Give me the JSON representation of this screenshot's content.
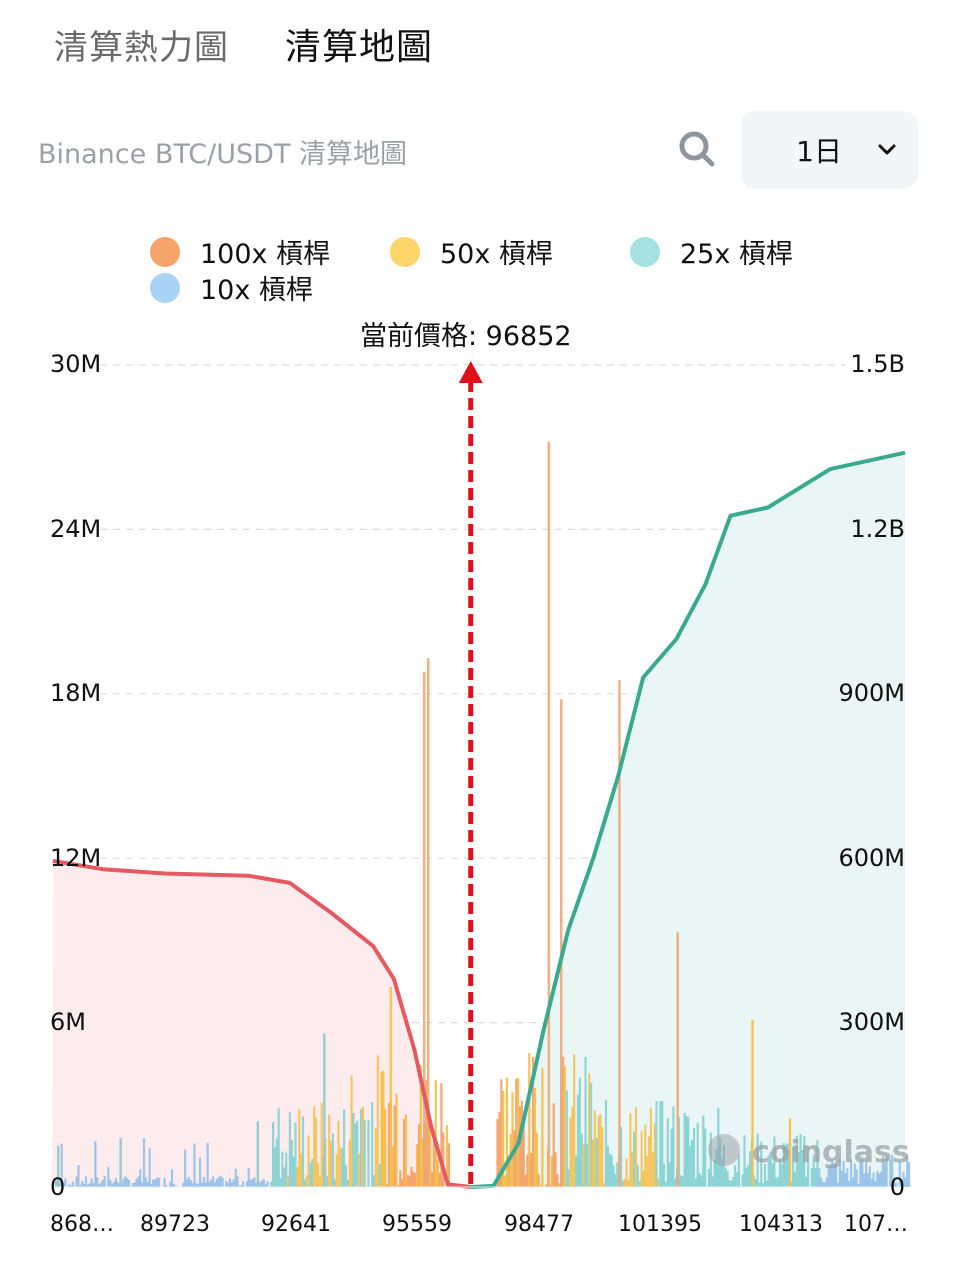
{
  "tabs": [
    {
      "label": "清算熱力圖",
      "active": false
    },
    {
      "label": "清算地圖",
      "active": true
    }
  ],
  "header": {
    "subtitle": "Binance BTC/USDT 清算地圖",
    "search_icon": "search-icon",
    "range": {
      "selected": "1日",
      "icon": "chevron-down-icon"
    }
  },
  "legend": [
    {
      "label": "100x 槓桿",
      "color": "#f7a46b"
    },
    {
      "label": "50x 槓桿",
      "color": "#fcd46a"
    },
    {
      "label": "25x 槓桿",
      "color": "#a6e1e2"
    },
    {
      "label": "10x 槓桿",
      "color": "#a9d3f5"
    }
  ],
  "current_price": {
    "label": "當前價格: 96852",
    "value": 96852,
    "color": "#e0101a"
  },
  "colors": {
    "short_cum_line": "#e45a62",
    "short_cum_fill": "#fdecee",
    "long_cum_line": "#3aa98e",
    "long_cum_fill": "#eaf6f5",
    "grid": "#dddddd"
  },
  "watermark": "coinglass",
  "chart_data": {
    "type": "bar",
    "title": "Binance BTC/USDT 清算地圖",
    "xlabel": "",
    "ylabel": "",
    "ylabel_right": "",
    "y_ticks_left": [
      "0",
      "6M",
      "12M",
      "18M",
      "24M",
      "30M"
    ],
    "y_ticks_right": [
      "0",
      "300M",
      "600M",
      "900M",
      "1.2B",
      "1.5B"
    ],
    "ylim_left": [
      0,
      30000000
    ],
    "ylim_right": [
      0,
      1500000000
    ],
    "x_tick_labels": [
      "868…",
      "89723",
      "92641",
      "95559",
      "98477",
      "101395",
      "104313",
      "107…"
    ],
    "x_ticks_values": [
      86805,
      89723,
      92641,
      95559,
      98477,
      101395,
      104313,
      107231
    ],
    "xlim": [
      86000,
      107500
    ],
    "current_price": 96852,
    "grid": true,
    "legend_position": "top",
    "series": [
      {
        "name": "100x 槓桿",
        "color": "#f7a46b",
        "description": "Concentrated near current price (95000-103000); peak ~27M near 99000"
      },
      {
        "name": "50x 槓桿",
        "color": "#fcd46a",
        "description": "Concentrated 94500-104500; peaks ~9M"
      },
      {
        "name": "25x 槓桿",
        "color": "#a6e1e2",
        "description": "Spread 91500-106000; mostly under 5M"
      },
      {
        "name": "10x 槓桿",
        "color": "#a9d3f5",
        "description": "Far from price (86800-92000, 105000-107500); mostly under 2M"
      }
    ],
    "bars_sample": [
      {
        "price": 86900,
        "value": 1500000
      },
      {
        "price": 88400,
        "value": 1800000
      },
      {
        "price": 91700,
        "value": 2400000
      },
      {
        "price": 93300,
        "value": 5600000
      },
      {
        "price": 94900,
        "value": 7300000
      },
      {
        "price": 95700,
        "value": 18800000
      },
      {
        "price": 95800,
        "value": 19300000
      },
      {
        "price": 98700,
        "value": 27200000
      },
      {
        "price": 99000,
        "value": 17800000
      },
      {
        "price": 100400,
        "value": 18500000
      },
      {
        "price": 101800,
        "value": 9300000
      },
      {
        "price": 103600,
        "value": 6100000
      },
      {
        "price": 104500,
        "value": 2500000
      }
    ],
    "cumulative_short": {
      "name": "cumulative short liquidations (left side)",
      "axis": "right",
      "points": [
        [
          86800,
          595000000
        ],
        [
          88000,
          580000000
        ],
        [
          89500,
          572000000
        ],
        [
          91500,
          568000000
        ],
        [
          92500,
          555000000
        ],
        [
          93500,
          500000000
        ],
        [
          94500,
          440000000
        ],
        [
          95000,
          380000000
        ],
        [
          95500,
          250000000
        ],
        [
          95900,
          110000000
        ],
        [
          96300,
          5000000
        ],
        [
          96852,
          0
        ]
      ]
    },
    "cumulative_long": {
      "name": "cumulative long liquidations (right side)",
      "axis": "right",
      "points": [
        [
          96852,
          0
        ],
        [
          97400,
          2000000
        ],
        [
          98000,
          80000000
        ],
        [
          98600,
          285000000
        ],
        [
          99200,
          470000000
        ],
        [
          99800,
          600000000
        ],
        [
          100400,
          750000000
        ],
        [
          101000,
          930000000
        ],
        [
          101800,
          1000000000
        ],
        [
          102500,
          1100000000
        ],
        [
          103100,
          1225000000
        ],
        [
          104000,
          1240000000
        ],
        [
          105500,
          1310000000
        ],
        [
          107300,
          1340000000
        ]
      ]
    }
  }
}
